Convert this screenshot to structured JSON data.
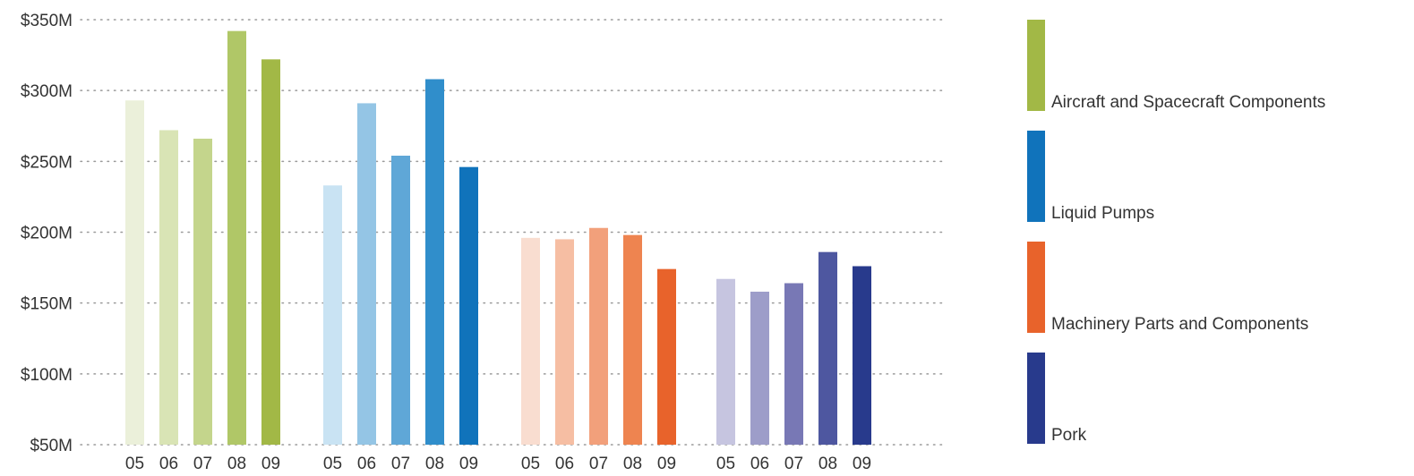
{
  "chart_data": {
    "type": "bar",
    "title": "",
    "xlabel": "",
    "ylabel": "",
    "ylim": [
      50,
      350
    ],
    "y_ticks": [
      {
        "value": 50,
        "label": "$50M"
      },
      {
        "value": 100,
        "label": "$100M"
      },
      {
        "value": 150,
        "label": "$150M"
      },
      {
        "value": 200,
        "label": "$200M"
      },
      {
        "value": 250,
        "label": "$250M"
      },
      {
        "value": 300,
        "label": "$300M"
      },
      {
        "value": 350,
        "label": "$350M"
      }
    ],
    "grid": "dotted-horizontal",
    "legend_position": "right",
    "categories": [
      "05",
      "06",
      "07",
      "08",
      "09"
    ],
    "series": [
      {
        "name": "Aircraft and Spacecraft Components",
        "color": "#a2b846",
        "values": [
          293,
          272,
          266,
          342,
          322
        ],
        "bar_colors": [
          "#ebf0da",
          "#d9e4b5",
          "#c4d58c",
          "#b0c767",
          "#a2b846"
        ]
      },
      {
        "name": "Liquid Pumps",
        "color": "#1073bb",
        "values": [
          233,
          291,
          254,
          308,
          246
        ],
        "bar_colors": [
          "#c9e3f3",
          "#94c5e5",
          "#5fa7d7",
          "#308ecb",
          "#1073bb"
        ]
      },
      {
        "name": "Machinery Parts and Components",
        "color": "#e8632b",
        "values": [
          196,
          195,
          203,
          198,
          174
        ],
        "bar_colors": [
          "#f9ddd0",
          "#f6bea3",
          "#f2a07b",
          "#ee8450",
          "#e8632b"
        ]
      },
      {
        "name": "Pork",
        "color": "#283a8c",
        "values": [
          167,
          158,
          164,
          186,
          176
        ],
        "bar_colors": [
          "#c6c5e0",
          "#9d9dc9",
          "#7878b5",
          "#4e57a0",
          "#283a8c"
        ]
      }
    ]
  }
}
